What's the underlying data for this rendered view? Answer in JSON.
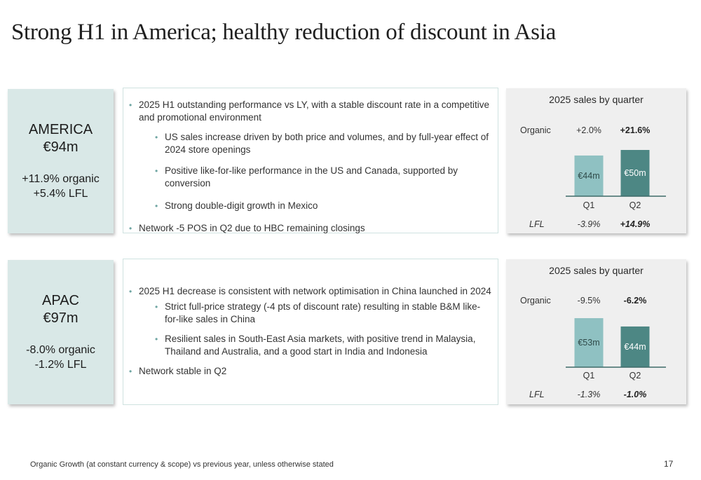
{
  "title": "Strong H1 in America; healthy reduction of discount in Asia",
  "colors": {
    "q1_bar": "#8fc1c2",
    "q2_bar": "#4d8784",
    "region_bg": "#d9e8e7"
  },
  "regions": [
    {
      "name": "AMERICA",
      "total": "€94m",
      "organic": "+11.9% organic",
      "lfl": "+5.4% LFL",
      "bullets": [
        {
          "text": "2025 H1 outstanding performance vs LY, with a stable discount rate in a competitive and promotional environment",
          "sub": [
            "US sales increase driven by both price and volumes, and by full-year effect of 2024 store openings",
            "Positive like-for-like performance in the US and Canada, supported by conversion",
            "Strong double-digit growth in Mexico"
          ]
        },
        {
          "text": "Network -5 POS in Q2 due to HBC remaining closings",
          "sub": []
        }
      ]
    },
    {
      "name": "APAC",
      "total": "€97m",
      "organic": "-8.0% organic",
      "lfl": "-1.2% LFL",
      "bullets": [
        {
          "text": "2025 H1 decrease is consistent with network optimisation in China launched in 2024",
          "sub": [
            "Strict full-price strategy (-4 pts of discount rate) resulting in stable B&M like-for-like sales in China",
            "Resilient sales in South-East Asia markets, with positive trend in Malaysia, Thailand and Australia, and a good start in India and Indonesia"
          ]
        },
        {
          "text": "Network stable in Q2",
          "sub": []
        }
      ]
    }
  ],
  "chart_data": [
    {
      "type": "bar",
      "title": "2025 sales by quarter",
      "categories": [
        "Q1",
        "Q2"
      ],
      "values": [
        44,
        50
      ],
      "unit": "€m",
      "data_labels": [
        "€44m",
        "€50m"
      ],
      "organic_label": "Organic",
      "organic": [
        "+2.0%",
        "+21.6%"
      ],
      "lfl_label": "LFL",
      "lfl": [
        "-3.9%",
        "+14.9%"
      ]
    },
    {
      "type": "bar",
      "title": "2025 sales by quarter",
      "categories": [
        "Q1",
        "Q2"
      ],
      "values": [
        53,
        44
      ],
      "unit": "€m",
      "data_labels": [
        "€53m",
        "€44m"
      ],
      "organic_label": "Organic",
      "organic": [
        "-9.5%",
        "-6.2%"
      ],
      "lfl_label": "LFL",
      "lfl": [
        "-1.3%",
        "-1.0%"
      ]
    }
  ],
  "footnote": "Organic Growth (at constant currency & scope) vs previous year, unless otherwise stated",
  "page_number": "17"
}
